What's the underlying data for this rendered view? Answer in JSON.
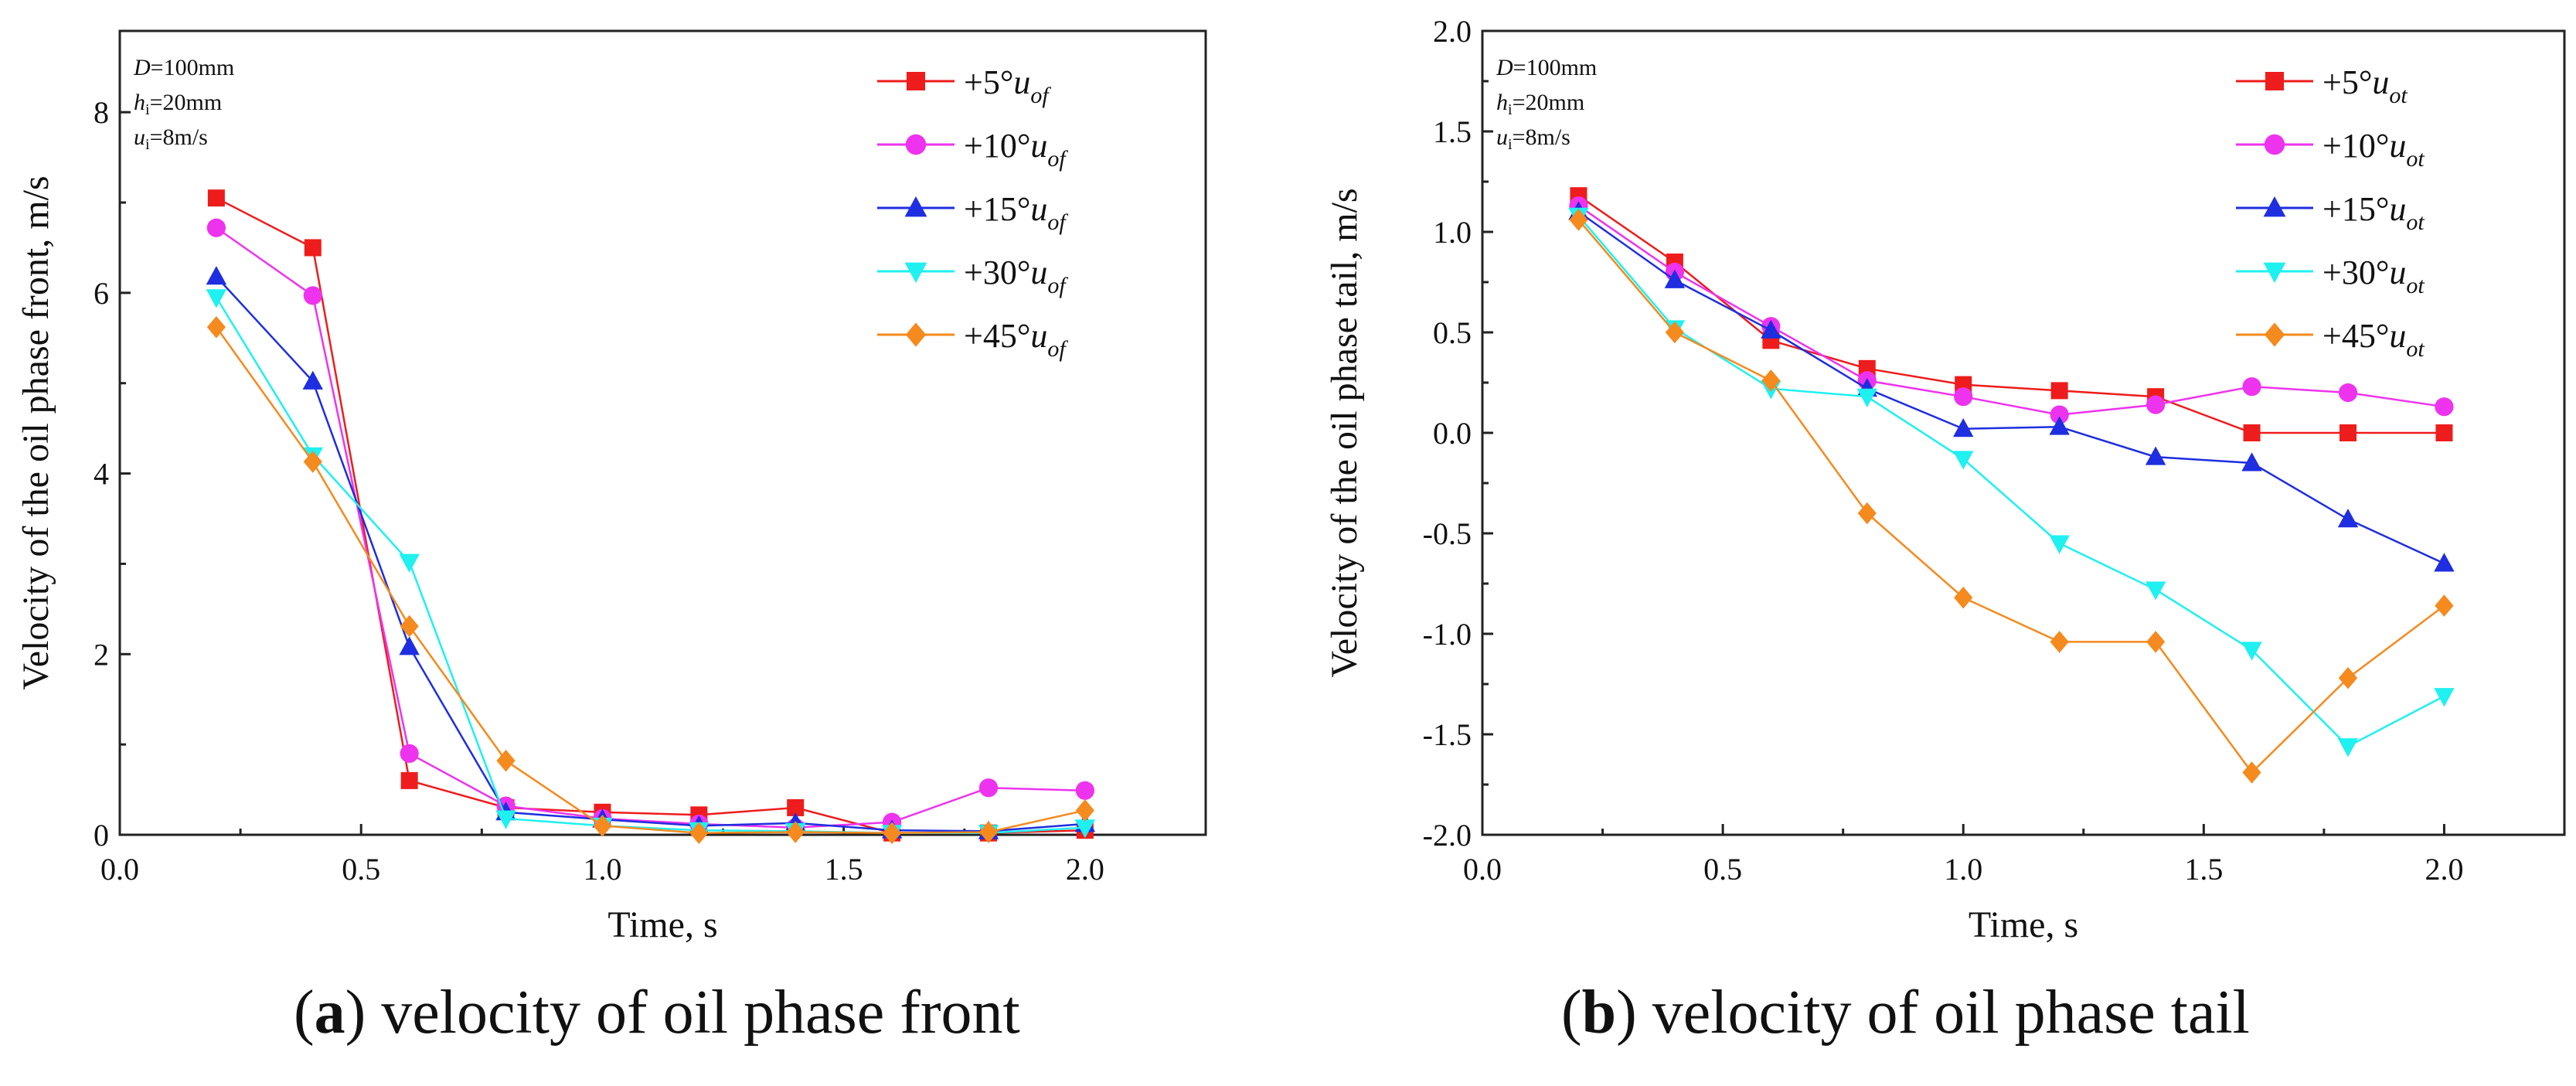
{
  "colors": {
    "series": [
      "#ee1c1c",
      "#ee33ee",
      "#1e2ee0",
      "#1ff0f0",
      "#f58a1e"
    ]
  },
  "captions": [
    {
      "letter": "a",
      "open": "(",
      "close": ")",
      "text": " velocity of oil phase front"
    },
    {
      "letter": "b",
      "open": "(",
      "close": ")",
      "text": " velocity of oil phase tail"
    }
  ],
  "chart_data": [
    {
      "type": "line",
      "xlabel": "Time, s",
      "ylabel": "Velocity of the oil phase front, m/s",
      "xlim": [
        0.0,
        2.25
      ],
      "ylim": [
        0,
        8.9
      ],
      "xticks": [
        0.0,
        0.5,
        1.0,
        1.5,
        2.0
      ],
      "xtick_labels": [
        "0.0",
        "0.5",
        "1.0",
        "1.5",
        "2.0"
      ],
      "yticks": [
        0,
        2,
        4,
        6,
        8
      ],
      "ytick_labels": [
        "0",
        "2",
        "4",
        "6",
        "8"
      ],
      "grid": false,
      "legend_position": "top-right",
      "annotations": [
        {
          "var": "D",
          "sub": "",
          "rest": "=100mm"
        },
        {
          "var": "h",
          "sub": "i",
          "rest": "=20mm"
        },
        {
          "var": "u",
          "sub": "i",
          "rest": "=8m/s"
        }
      ],
      "x": [
        0.2,
        0.4,
        0.6,
        0.8,
        1.0,
        1.2,
        1.4,
        1.6,
        1.8,
        2.0
      ],
      "series": [
        {
          "name": "+5°",
          "var": "u",
          "sub": "of",
          "marker": "square",
          "values": [
            7.05,
            6.5,
            0.6,
            0.3,
            0.25,
            0.22,
            0.3,
            0.02,
            0.02,
            0.05
          ]
        },
        {
          "name": "+10°",
          "var": "u",
          "sub": "of",
          "marker": "circle",
          "values": [
            6.72,
            5.97,
            0.9,
            0.32,
            0.18,
            0.12,
            0.08,
            0.14,
            0.52,
            0.49
          ]
        },
        {
          "name": "+15°",
          "var": "u",
          "sub": "of",
          "marker": "triangle-up",
          "values": [
            6.18,
            5.02,
            2.08,
            0.25,
            0.17,
            0.1,
            0.13,
            0.05,
            0.04,
            0.12
          ]
        },
        {
          "name": "+30°",
          "var": "u",
          "sub": "of",
          "marker": "triangle-down",
          "values": [
            5.95,
            4.2,
            3.02,
            0.18,
            0.1,
            0.05,
            0.04,
            0.02,
            0.02,
            0.08
          ]
        },
        {
          "name": "+45°",
          "var": "u",
          "sub": "of",
          "marker": "diamond",
          "values": [
            5.62,
            4.13,
            2.31,
            0.82,
            0.1,
            0.02,
            0.03,
            0.02,
            0.03,
            0.27
          ]
        }
      ]
    },
    {
      "type": "line",
      "xlabel": "Time, s",
      "ylabel": "Velocity of the oil phase tail, m/s",
      "xlim": [
        0.0,
        2.25
      ],
      "ylim": [
        -2.0,
        2.0
      ],
      "xticks": [
        0.0,
        0.5,
        1.0,
        1.5,
        2.0
      ],
      "xtick_labels": [
        "0.0",
        "0.5",
        "1.0",
        "1.5",
        "2.0"
      ],
      "yticks": [
        -2.0,
        -1.5,
        -1.0,
        -0.5,
        0.0,
        0.5,
        1.0,
        1.5,
        2.0
      ],
      "ytick_labels": [
        "-2.0",
        "-1.5",
        "-1.0",
        "-0.5",
        "0.0",
        "0.5",
        "1.0",
        "1.5",
        "2.0"
      ],
      "grid": false,
      "legend_position": "top-right",
      "annotations": [
        {
          "var": "D",
          "sub": "",
          "rest": "=100mm"
        },
        {
          "var": "h",
          "sub": "i",
          "rest": "=20mm"
        },
        {
          "var": "u",
          "sub": "i",
          "rest": "=8m/s"
        }
      ],
      "x": [
        0.2,
        0.4,
        0.6,
        0.8,
        1.0,
        1.2,
        1.4,
        1.6,
        1.8,
        2.0
      ],
      "series": [
        {
          "name": "+5°",
          "var": "u",
          "sub": "ot",
          "marker": "square",
          "values": [
            1.18,
            0.85,
            0.46,
            0.32,
            0.24,
            0.21,
            0.18,
            0.0,
            0.0,
            0.0
          ]
        },
        {
          "name": "+10°",
          "var": "u",
          "sub": "ot",
          "marker": "circle",
          "values": [
            1.13,
            0.8,
            0.53,
            0.26,
            0.18,
            0.09,
            0.14,
            0.23,
            0.2,
            0.13
          ]
        },
        {
          "name": "+15°",
          "var": "u",
          "sub": "ot",
          "marker": "triangle-up",
          "values": [
            1.1,
            0.76,
            0.51,
            0.22,
            0.02,
            0.03,
            -0.12,
            -0.15,
            -0.43,
            -0.65
          ]
        },
        {
          "name": "+30°",
          "var": "u",
          "sub": "ot",
          "marker": "triangle-down",
          "values": [
            1.08,
            0.52,
            0.22,
            0.18,
            -0.13,
            -0.55,
            -0.78,
            -1.08,
            -1.56,
            -1.31
          ]
        },
        {
          "name": "+45°",
          "var": "u",
          "sub": "ot",
          "marker": "diamond",
          "values": [
            1.06,
            0.5,
            0.26,
            -0.4,
            -0.82,
            -1.04,
            -1.04,
            -1.69,
            -1.22,
            -0.86
          ]
        }
      ]
    }
  ]
}
